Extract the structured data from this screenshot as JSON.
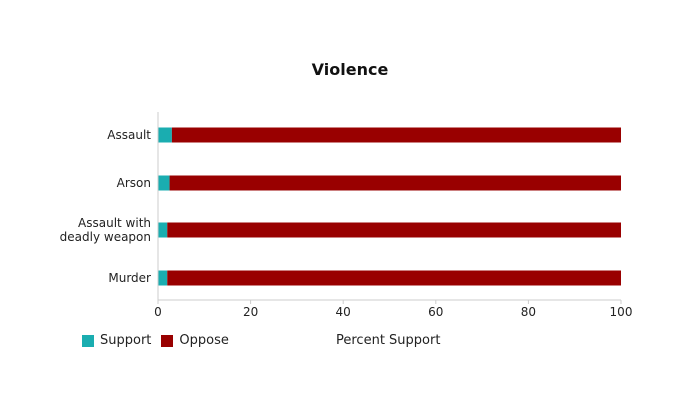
{
  "chart_data": {
    "type": "bar",
    "stacked": true,
    "orientation": "horizontal",
    "title": "Violence",
    "xlabel": "Percent Support",
    "ylabel": "",
    "categories": [
      [
        "Assault"
      ],
      [
        "Arson"
      ],
      [
        "Assault with",
        "deadly weapon"
      ],
      [
        "Murder"
      ]
    ],
    "series": [
      {
        "name": "Support",
        "color": "#1AADB0",
        "values": [
          3,
          2.5,
          2,
          2
        ]
      },
      {
        "name": "Oppose",
        "color": "#990000",
        "values": [
          97,
          97.5,
          98,
          98
        ]
      }
    ],
    "xlim": [
      0,
      100
    ],
    "xticks": [
      0,
      20,
      40,
      60,
      80,
      100
    ],
    "grid": false,
    "legend_position": "bottom-left"
  }
}
